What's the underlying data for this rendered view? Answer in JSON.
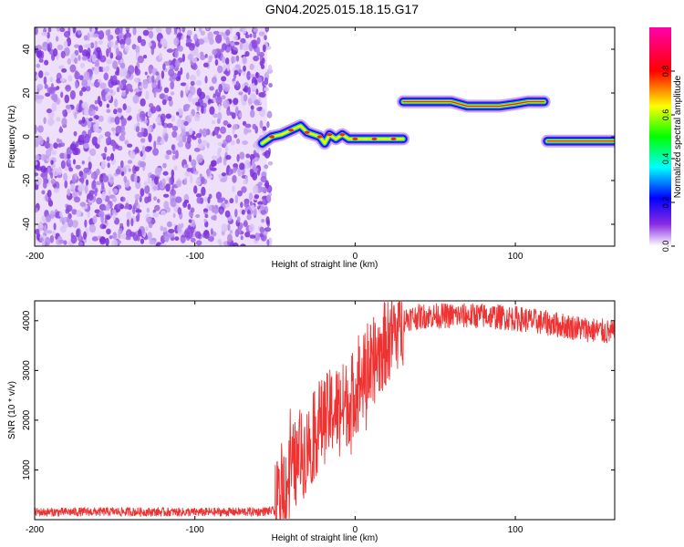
{
  "title": "GN04.2025.015.18.15.G17",
  "chart_data": [
    {
      "type": "heatmap",
      "title": "GN04.2025.015.18.15.G17",
      "xlabel": "Height of straight line (km)",
      "ylabel": "Frequency (Hz)",
      "xlim": [
        -200,
        162
      ],
      "ylim": [
        -50,
        50
      ],
      "xticks": [
        "-200",
        "-100",
        "0",
        "100"
      ],
      "yticks": [
        "-40",
        "-20",
        "0",
        "20",
        "40"
      ],
      "grid": false,
      "colorbar": {
        "label": "Normalized spectral amplitude",
        "range": [
          0,
          1
        ],
        "ticks": [
          "0.0",
          "0.2",
          "0.4",
          "0.6",
          "0.8"
        ]
      },
      "noise_region": {
        "x_from": -200,
        "x_to": -55,
        "y_from": -50,
        "y_to": 50
      },
      "segments": [
        {
          "x": [
            -58,
            -52,
            -46,
            -40,
            -34,
            -30,
            -26,
            -22,
            -19,
            -16,
            -12,
            -8,
            -4,
            0,
            6,
            12,
            18,
            24,
            30
          ],
          "y": [
            -3,
            0,
            1,
            3,
            5,
            2,
            1,
            0,
            -3,
            1,
            -1,
            1,
            -1,
            -1,
            -1,
            -1,
            -1,
            -1,
            -1
          ]
        },
        {
          "x": [
            30,
            45,
            60,
            70,
            80,
            90,
            100,
            108,
            118
          ],
          "y": [
            16,
            16,
            16,
            14,
            14,
            14,
            15,
            16,
            16
          ]
        },
        {
          "x": [
            120,
            135,
            150,
            162
          ],
          "y": [
            -2,
            -2,
            -2,
            -2
          ]
        }
      ]
    },
    {
      "type": "line",
      "xlabel": "Height of straight line (km)",
      "ylabel": "SNR (10 * v/v)",
      "xlim": [
        -200,
        162
      ],
      "ylim": [
        0,
        4400
      ],
      "xticks": [
        "-200",
        "-100",
        "0",
        "100"
      ],
      "yticks": [
        "1000",
        "2000",
        "3000",
        "4000"
      ],
      "grid": false,
      "color": "#ee3333",
      "envelope": [
        [
          -200,
          150
        ],
        [
          -150,
          160
        ],
        [
          -100,
          150
        ],
        [
          -60,
          160
        ],
        [
          -50,
          180
        ],
        [
          -44,
          700
        ],
        [
          -38,
          1100
        ],
        [
          -30,
          1400
        ],
        [
          -22,
          1900
        ],
        [
          -14,
          2200
        ],
        [
          -6,
          2300
        ],
        [
          0,
          2600
        ],
        [
          8,
          3000
        ],
        [
          16,
          3400
        ],
        [
          24,
          3800
        ],
        [
          32,
          4050
        ],
        [
          45,
          4100
        ],
        [
          60,
          4100
        ],
        [
          80,
          4100
        ],
        [
          100,
          4050
        ],
        [
          120,
          3950
        ],
        [
          140,
          3850
        ],
        [
          162,
          3750
        ]
      ]
    }
  ]
}
